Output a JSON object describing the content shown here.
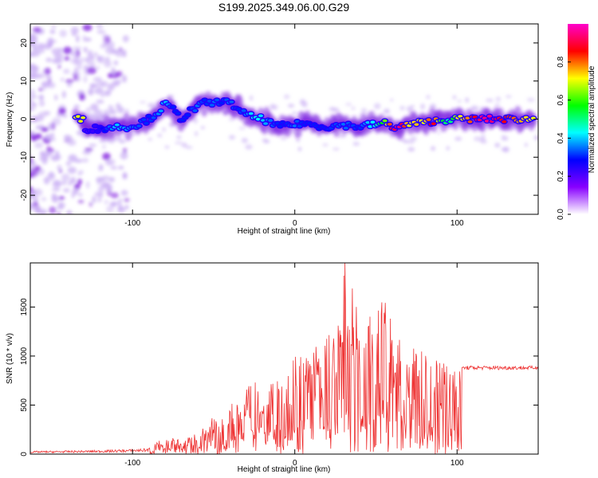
{
  "title": "S199.2025.349.06.00.G29",
  "chart_data": [
    {
      "type": "heatmap",
      "xlabel": "Height of straight line (km)",
      "ylabel": "Frequency (Hz)",
      "xlim": [
        -163,
        150
      ],
      "ylim": [
        -25,
        25
      ],
      "xticks": [
        -100,
        0,
        100
      ],
      "yticks": [
        -20,
        -10,
        0,
        10,
        20
      ],
      "ridge": [
        {
          "x": -130,
          "y": -2.5,
          "a": 0.2
        },
        {
          "x": -120,
          "y": -2.5,
          "a": 0.25
        },
        {
          "x": -110,
          "y": -2.0,
          "a": 0.4
        },
        {
          "x": -100,
          "y": -2.0,
          "a": 0.35
        },
        {
          "x": -90,
          "y": 0.0,
          "a": 0.3
        },
        {
          "x": -85,
          "y": 1.5,
          "a": 0.35
        },
        {
          "x": -80,
          "y": 4.0,
          "a": 0.4
        },
        {
          "x": -75,
          "y": 2.5,
          "a": 0.3
        },
        {
          "x": -70,
          "y": 0.0,
          "a": 0.3
        },
        {
          "x": -65,
          "y": 2.0,
          "a": 0.3
        },
        {
          "x": -60,
          "y": 3.0,
          "a": 0.35
        },
        {
          "x": -55,
          "y": 4.5,
          "a": 0.3
        },
        {
          "x": -50,
          "y": 4.0,
          "a": 0.35
        },
        {
          "x": -45,
          "y": 5.0,
          "a": 0.3
        },
        {
          "x": -40,
          "y": 4.0,
          "a": 0.35
        },
        {
          "x": -35,
          "y": 3.0,
          "a": 0.3
        },
        {
          "x": -30,
          "y": 1.0,
          "a": 0.35
        },
        {
          "x": -25,
          "y": 0.5,
          "a": 0.45
        },
        {
          "x": -20,
          "y": 0.0,
          "a": 0.4
        },
        {
          "x": -15,
          "y": -1.0,
          "a": 0.35
        },
        {
          "x": -10,
          "y": -2.0,
          "a": 0.3
        },
        {
          "x": -5,
          "y": -1.5,
          "a": 0.3
        },
        {
          "x": 0,
          "y": -1.5,
          "a": 0.35
        },
        {
          "x": 5,
          "y": -1.0,
          "a": 0.3
        },
        {
          "x": 10,
          "y": -1.5,
          "a": 0.3
        },
        {
          "x": 20,
          "y": -2.0,
          "a": 0.3
        },
        {
          "x": 30,
          "y": -1.5,
          "a": 0.35
        },
        {
          "x": 40,
          "y": -2.0,
          "a": 0.3
        },
        {
          "x": 45,
          "y": -1.5,
          "a": 0.4
        },
        {
          "x": 50,
          "y": -1.5,
          "a": 0.45
        },
        {
          "x": 55,
          "y": -1.0,
          "a": 0.6
        },
        {
          "x": 60,
          "y": -2.0,
          "a": 0.9
        },
        {
          "x": 65,
          "y": -2.0,
          "a": 0.95
        },
        {
          "x": 70,
          "y": -1.5,
          "a": 0.7
        },
        {
          "x": 75,
          "y": -1.0,
          "a": 0.75
        },
        {
          "x": 80,
          "y": -1.0,
          "a": 0.7
        },
        {
          "x": 85,
          "y": -0.5,
          "a": 0.9
        },
        {
          "x": 90,
          "y": -0.5,
          "a": 0.6
        },
        {
          "x": 95,
          "y": 0.0,
          "a": 0.45
        },
        {
          "x": 100,
          "y": 0.0,
          "a": 0.7
        },
        {
          "x": 105,
          "y": 0.0,
          "a": 0.75
        },
        {
          "x": 110,
          "y": 0.0,
          "a": 0.85
        },
        {
          "x": 115,
          "y": 0.0,
          "a": 0.95
        },
        {
          "x": 120,
          "y": 0.0,
          "a": 0.95
        },
        {
          "x": 125,
          "y": 0.0,
          "a": 0.9
        },
        {
          "x": 130,
          "y": 0.0,
          "a": 0.85
        },
        {
          "x": 135,
          "y": 0.0,
          "a": 0.8
        },
        {
          "x": 140,
          "y": 0.0,
          "a": 0.75
        },
        {
          "x": 148,
          "y": 0.0,
          "a": 0.7
        }
      ],
      "colorbar": {
        "label": "Normalized spectral amplitude",
        "range": [
          0.0,
          1.0
        ],
        "ticks": [
          "0.0",
          "0.2",
          "0.4",
          "0.6",
          "0.8"
        ],
        "colors": [
          "#ffffff",
          "#8800ff",
          "#0000ff",
          "#00ffff",
          "#00ff00",
          "#ffff00",
          "#ff0000",
          "#ff00cc"
        ]
      }
    },
    {
      "type": "line",
      "xlabel": "Height of straight line (km)",
      "ylabel": "SNR (10 * v/v)",
      "xlim": [
        -163,
        150
      ],
      "ylim": [
        0,
        1950
      ],
      "xticks": [
        -100,
        0,
        100
      ],
      "yticks": [
        0,
        500,
        1000,
        1500
      ],
      "color": "#ee3333",
      "envelope": [
        {
          "x": -163,
          "y": 30
        },
        {
          "x": -140,
          "y": 35
        },
        {
          "x": -120,
          "y": 40
        },
        {
          "x": -100,
          "y": 50
        },
        {
          "x": -90,
          "y": 60
        },
        {
          "x": -80,
          "y": 180
        },
        {
          "x": -75,
          "y": 200
        },
        {
          "x": -70,
          "y": 150
        },
        {
          "x": -60,
          "y": 220
        },
        {
          "x": -50,
          "y": 400
        },
        {
          "x": -40,
          "y": 500
        },
        {
          "x": -30,
          "y": 650
        },
        {
          "x": -20,
          "y": 900
        },
        {
          "x": -10,
          "y": 850
        },
        {
          "x": 0,
          "y": 1000
        },
        {
          "x": 10,
          "y": 1100
        },
        {
          "x": 20,
          "y": 1200
        },
        {
          "x": 25,
          "y": 1350
        },
        {
          "x": 31,
          "y": 1950
        },
        {
          "x": 40,
          "y": 1450
        },
        {
          "x": 50,
          "y": 1400
        },
        {
          "x": 56,
          "y": 1650
        },
        {
          "x": 60,
          "y": 1300
        },
        {
          "x": 70,
          "y": 1150
        },
        {
          "x": 80,
          "y": 1050
        },
        {
          "x": 90,
          "y": 1000
        },
        {
          "x": 97,
          "y": 1050
        },
        {
          "x": 100,
          "y": 1100
        },
        {
          "x": 103,
          "y": 900
        },
        {
          "x": 150,
          "y": 880
        }
      ],
      "plateau": {
        "x_start": 103,
        "x_end": 150,
        "value": 880
      },
      "peak": {
        "x": 31,
        "y": 1950
      }
    }
  ]
}
